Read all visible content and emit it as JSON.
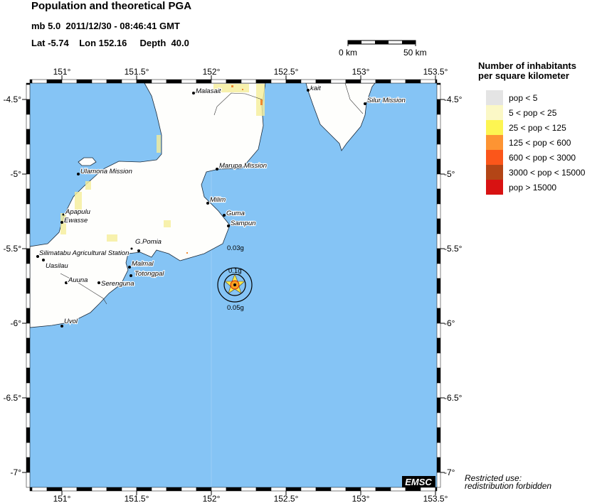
{
  "header": {
    "title": "Population and theoretical PGA",
    "event_line": "mb 5.0  2011/12/30 - 08:46:41 GMT",
    "location_line": "Lat -5.74    Lon 152.16     Depth  40.0"
  },
  "scale_bar": {
    "start_label": "0 km",
    "end_label": "50 km"
  },
  "map": {
    "extent": {
      "lon_min": 150.79,
      "lon_max": 153.5,
      "lat_min": -7.1,
      "lat_max": -4.39
    },
    "lon_ticks": [
      "151°",
      "151.5°",
      "152°",
      "152.5°",
      "153°",
      "153.5°"
    ],
    "lat_ticks": [
      "-4.5°",
      "-5°",
      "-5.5°",
      "-6°",
      "-6.5°",
      "-7°"
    ],
    "colors": {
      "sea": "#85c4f5",
      "land": "#ffffff",
      "coast": "#1a2a3a"
    },
    "cities": [
      "Malasait",
      "kait",
      "Silur Mission",
      "Marupa Mission",
      "Ulamona Mission",
      "Milim",
      "Guma",
      "Sampun",
      "Apapulu",
      "Ewasse",
      "G.Pomia",
      "Silimatabu Agricultural Station",
      "Uasilau",
      "Malmal",
      "Totongpal",
      "Auuna",
      "Serenguna",
      "Uvol"
    ],
    "epicenter": {
      "lat": -5.74,
      "lon": 152.16
    },
    "pga_labels": [
      "0.03g",
      "0.1g",
      "0.05g"
    ],
    "logo": "EMSC"
  },
  "legend": {
    "title_line1": "Number of inhabitants",
    "title_line2": "per square kilometer",
    "items": [
      {
        "label": "pop < 5",
        "color": "#e4e4e4"
      },
      {
        "label": "5 < pop < 25",
        "color": "#fbf8c6"
      },
      {
        "label": "25 < pop < 125",
        "color": "#fdf552"
      },
      {
        "label": "125 < pop < 600",
        "color": "#fd9433"
      },
      {
        "label": "600 < pop < 3000",
        "color": "#fb561a"
      },
      {
        "label": "3000 < pop < 15000",
        "color": "#b34516"
      },
      {
        "label": "pop > 15000",
        "color": "#d81212"
      }
    ]
  },
  "footer": {
    "line1": "Restricted use:",
    "line2": "redistribution forbidden"
  }
}
